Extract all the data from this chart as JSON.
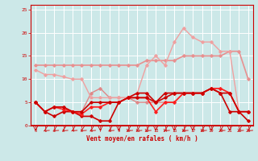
{
  "xlabel": "Vent moyen/en rafales ( km/h )",
  "background_color": "#cce8e8",
  "grid_color": "#ffffff",
  "xlim": [
    -0.5,
    23.5
  ],
  "ylim": [
    0,
    26
  ],
  "yticks": [
    0,
    5,
    10,
    15,
    20,
    25
  ],
  "xticks": [
    0,
    1,
    2,
    3,
    4,
    5,
    6,
    7,
    8,
    9,
    10,
    11,
    12,
    13,
    14,
    15,
    16,
    17,
    18,
    19,
    20,
    21,
    22,
    23
  ],
  "line1": {
    "x": [
      0,
      1,
      2,
      3,
      4,
      5,
      6,
      7,
      8,
      9,
      10,
      11,
      12,
      13,
      14,
      15,
      16,
      17,
      18,
      19,
      20,
      21,
      22,
      23
    ],
    "y": [
      13,
      13,
      13,
      13,
      13,
      13,
      13,
      13,
      13,
      13,
      13,
      13,
      14,
      14,
      14,
      14,
      15,
      15,
      15,
      15,
      15,
      16,
      16,
      10
    ],
    "color": "#e89090",
    "lw": 1.2,
    "marker": "D",
    "markersize": 1.8
  },
  "line2": {
    "x": [
      0,
      1,
      2,
      3,
      4,
      5,
      6,
      7,
      8,
      9,
      10,
      11,
      12,
      13,
      14,
      15,
      16,
      17,
      18,
      19,
      20,
      21,
      22,
      23
    ],
    "y": [
      5,
      3,
      4,
      4,
      3,
      3,
      7,
      8,
      6,
      6,
      6,
      5,
      5,
      5,
      5,
      5,
      7,
      7,
      7,
      8,
      8,
      7,
      3,
      3
    ],
    "color": "#e08888",
    "lw": 1.0,
    "marker": "D",
    "markersize": 1.8
  },
  "line3": {
    "x": [
      0,
      1,
      2,
      3,
      4,
      5,
      6,
      7,
      8,
      9,
      10,
      11,
      12,
      13,
      14,
      15,
      16,
      17,
      18,
      19,
      20,
      21,
      22,
      23
    ],
    "y": [
      12,
      11,
      11,
      10.5,
      10,
      10,
      6,
      6,
      6,
      6,
      6,
      7,
      13,
      15,
      13,
      18,
      21,
      19,
      18,
      18,
      16,
      16,
      3,
      3
    ],
    "color": "#f0a0a0",
    "lw": 1.0,
    "marker": "D",
    "markersize": 1.8
  },
  "line4": {
    "x": [
      0,
      1,
      2,
      3,
      4,
      5,
      6,
      7,
      8,
      9,
      10,
      11,
      12,
      13,
      14,
      15,
      16,
      17,
      18,
      19,
      20,
      21,
      22,
      23
    ],
    "y": [
      5,
      3,
      2,
      3,
      3,
      2,
      2,
      1,
      1,
      5,
      6,
      7,
      7,
      5,
      7,
      7,
      7,
      7,
      7,
      8,
      7,
      3,
      3,
      1
    ],
    "color": "#cc0000",
    "lw": 1.2,
    "marker": "D",
    "markersize": 1.8
  },
  "line5": {
    "x": [
      0,
      1,
      2,
      3,
      4,
      5,
      6,
      7,
      8,
      9,
      10,
      11,
      12,
      13,
      14,
      15,
      16,
      17,
      18,
      19,
      20,
      21,
      22,
      23
    ],
    "y": [
      5,
      3,
      4,
      3.5,
      3,
      2.5,
      4,
      4,
      5,
      5,
      6,
      6,
      6,
      3,
      5,
      5,
      7,
      7,
      7,
      8,
      8,
      7,
      3,
      3
    ],
    "color": "#ff2020",
    "lw": 1.2,
    "marker": "D",
    "markersize": 1.8
  },
  "line6": {
    "x": [
      0,
      1,
      2,
      3,
      4,
      5,
      6,
      7,
      8,
      9,
      10,
      11,
      12,
      13,
      14,
      15,
      16,
      17,
      18,
      19,
      20,
      21,
      22,
      23
    ],
    "y": [
      5,
      3,
      4,
      4,
      3,
      3,
      5,
      5,
      5,
      5,
      6,
      6,
      6,
      5,
      6,
      7,
      7,
      7,
      7,
      8,
      7,
      7,
      3,
      3
    ],
    "color": "#cc0000",
    "lw": 1.2,
    "marker": "D",
    "markersize": 1.8
  },
  "arrow_angles": [
    180,
    225,
    225,
    225,
    225,
    225,
    225,
    180,
    225,
    180,
    225,
    225,
    225,
    180,
    225,
    180,
    225,
    180,
    225,
    180,
    225,
    180,
    225,
    225
  ]
}
